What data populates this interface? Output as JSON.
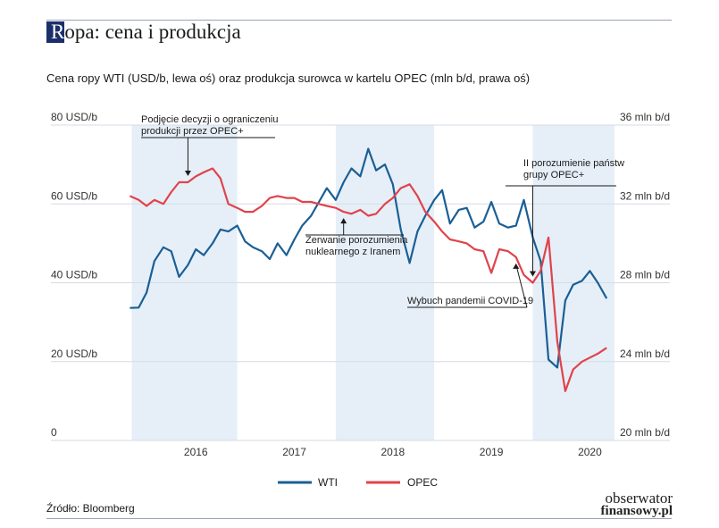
{
  "header": {
    "title_initial": "R",
    "title_rest": "opa: cena i produkcja",
    "subtitle": "Cena ropy WTI (USD/b, lewa oś) oraz produkcja surowca w kartelu OPEC (mln b/d, prawa oś)"
  },
  "footer": {
    "source": "Źródło: Bloomberg",
    "logo_line1": "obserwator",
    "logo_line2": "finansowy.pl"
  },
  "colors": {
    "wti": "#1a5f95",
    "opec": "#e0434b",
    "shade": "#e6eff8",
    "grid": "#d4dbe3"
  },
  "chart_data": {
    "type": "line",
    "x_unit": "year",
    "xlim": [
      2015.6,
      2020.75
    ],
    "x_ticks": [
      2016,
      2017,
      2018,
      2019,
      2020
    ],
    "left_axis": {
      "ylim": [
        0,
        80
      ],
      "ticks": [
        "0",
        "20 USD/b",
        "40 USD/b",
        "60 USD/b",
        "80 USD/b"
      ],
      "values": [
        0,
        20,
        40,
        60,
        80
      ]
    },
    "right_axis": {
      "ylim": [
        20,
        36
      ],
      "ticks": [
        "20 mln b/d",
        "24 mln b/d",
        "28 mln b/d",
        "32 mln b/d",
        "36 mln b/d"
      ],
      "values": [
        20,
        24,
        28,
        32,
        36
      ]
    },
    "shaded_periods": [
      [
        2015.85,
        2016.92
      ],
      [
        2017.92,
        2018.92
      ],
      [
        2019.92,
        2020.75
      ]
    ],
    "series": [
      {
        "name": "WTI",
        "axis": "left",
        "x": [
          2015.83,
          2015.92,
          2016.0,
          2016.08,
          2016.17,
          2016.25,
          2016.33,
          2016.42,
          2016.5,
          2016.58,
          2016.67,
          2016.75,
          2016.83,
          2016.92,
          2017.0,
          2017.08,
          2017.17,
          2017.25,
          2017.33,
          2017.42,
          2017.5,
          2017.58,
          2017.67,
          2017.75,
          2017.83,
          2017.92,
          2018.0,
          2018.08,
          2018.17,
          2018.25,
          2018.33,
          2018.42,
          2018.5,
          2018.58,
          2018.67,
          2018.75,
          2018.83,
          2018.92,
          2019.0,
          2019.08,
          2019.17,
          2019.25,
          2019.33,
          2019.42,
          2019.5,
          2019.58,
          2019.67,
          2019.75,
          2019.83,
          2019.92,
          2020.0,
          2020.08,
          2020.17,
          2020.25,
          2020.33,
          2020.42,
          2020.5,
          2020.58,
          2020.67
        ],
        "values": [
          33.6,
          33.7,
          37.5,
          45.5,
          49,
          48,
          41.5,
          44.5,
          48.5,
          47,
          50,
          53.5,
          53,
          54.5,
          50.5,
          49,
          48,
          46,
          50,
          47,
          51,
          54.5,
          57,
          60.5,
          64,
          61,
          65.5,
          69,
          67,
          74,
          68.5,
          70,
          65,
          53.5,
          45,
          53,
          57,
          61,
          63.5,
          55,
          58.5,
          59,
          54,
          55.5,
          60.5,
          55,
          54,
          54.5,
          61,
          51.5,
          45.5,
          20.5,
          18.5,
          35.5,
          39.5,
          40.5,
          43,
          40,
          36
        ]
      },
      {
        "name": "OPEC",
        "axis": "right",
        "x": [
          2015.83,
          2015.92,
          2016.0,
          2016.08,
          2016.17,
          2016.25,
          2016.33,
          2016.42,
          2016.5,
          2016.58,
          2016.67,
          2016.75,
          2016.83,
          2016.92,
          2017.0,
          2017.08,
          2017.17,
          2017.25,
          2017.33,
          2017.42,
          2017.5,
          2017.58,
          2017.67,
          2017.75,
          2017.83,
          2017.92,
          2018.0,
          2018.08,
          2018.17,
          2018.25,
          2018.33,
          2018.42,
          2018.5,
          2018.58,
          2018.67,
          2018.75,
          2018.83,
          2018.92,
          2019.0,
          2019.08,
          2019.17,
          2019.25,
          2019.33,
          2019.42,
          2019.5,
          2019.58,
          2019.67,
          2019.75,
          2019.83,
          2019.92,
          2020.0,
          2020.08,
          2020.17,
          2020.25,
          2020.33,
          2020.42,
          2020.5,
          2020.58,
          2020.67
        ],
        "values": [
          32.4,
          32.2,
          31.9,
          32.2,
          32.0,
          32.6,
          33.1,
          33.1,
          33.4,
          33.6,
          33.8,
          33.3,
          32.0,
          31.8,
          31.6,
          31.6,
          31.9,
          32.3,
          32.4,
          32.3,
          32.3,
          32.1,
          32.1,
          32.0,
          31.9,
          31.8,
          31.6,
          31.5,
          31.7,
          31.4,
          31.5,
          32.0,
          32.3,
          32.8,
          33.0,
          32.4,
          31.6,
          31.1,
          30.6,
          30.2,
          30.1,
          30.0,
          29.7,
          29.6,
          28.5,
          29.7,
          29.6,
          29.3,
          28.4,
          28.0,
          28.6,
          30.3,
          25.0,
          22.5,
          23.6,
          24.0,
          24.2,
          24.4,
          24.7
        ]
      }
    ],
    "annotations": [
      {
        "lines": [
          "Podjęcie decyzji o ograniczeniu",
          "produkcji przez OPEC+"
        ],
        "x": 2016.42,
        "series": "OPEC"
      },
      {
        "lines": [
          "Zerwanie porozumienia",
          "nuklearnego z Iranem"
        ],
        "x": 2018.0,
        "series": "OPEC"
      },
      {
        "lines": [
          "Wybuch pandemii COVID-19"
        ],
        "x": 2019.75,
        "series": "OPEC"
      },
      {
        "lines": [
          "II porozumienie państw",
          "grupy OPEC+"
        ],
        "x": 2019.92,
        "series": "OPEC"
      }
    ],
    "legend": {
      "placement": "bottom-center",
      "items": [
        "WTI",
        "OPEC"
      ]
    }
  }
}
